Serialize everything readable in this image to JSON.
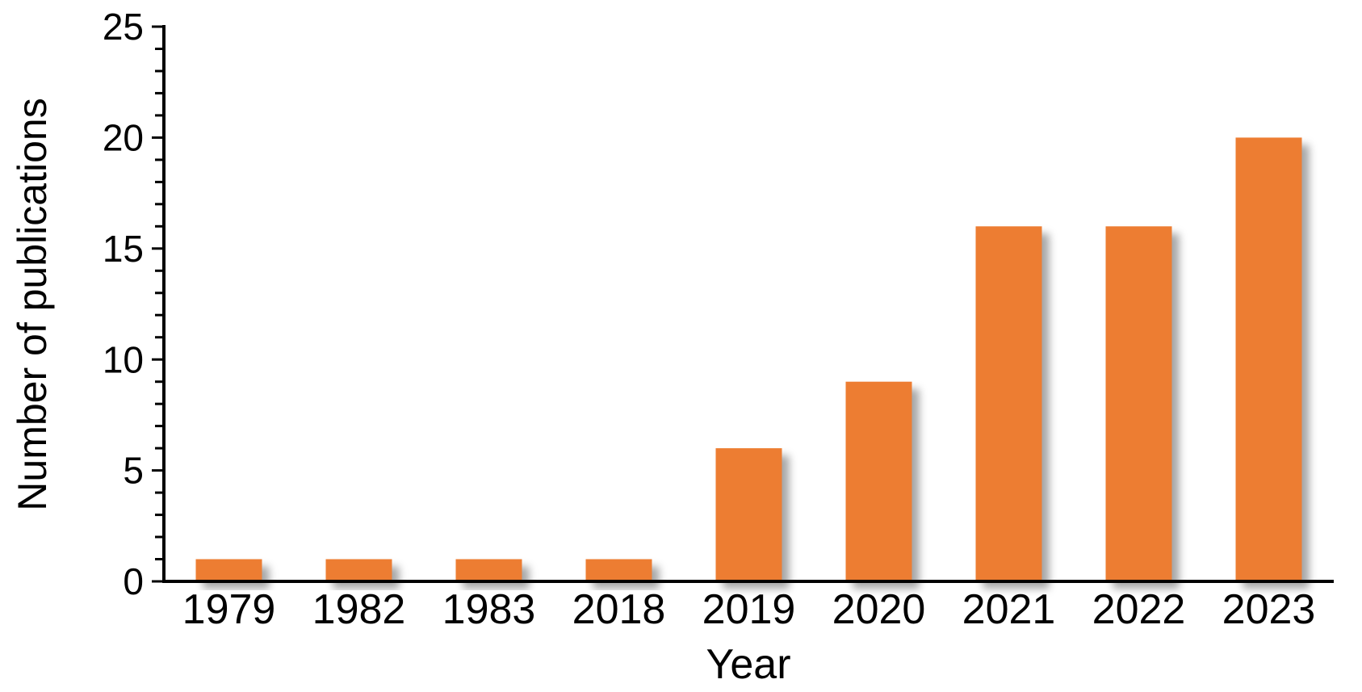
{
  "figure": {
    "background_color": "#ffffff"
  },
  "chart_data": {
    "type": "bar",
    "categories": [
      "1979",
      "1982",
      "1983",
      "2018",
      "2019",
      "2020",
      "2021",
      "2022",
      "2023"
    ],
    "values": [
      1,
      1,
      1,
      1,
      6,
      9,
      16,
      16,
      20
    ],
    "title": "",
    "xlabel": "Year",
    "ylabel": "Number of publications",
    "ylim": [
      0,
      25
    ],
    "yticks": [
      0,
      5,
      10,
      15,
      20,
      25
    ],
    "minor_tick_step": 1,
    "grid": false,
    "legend_position": "none",
    "bar_color": "#ED7D31",
    "axis_color": "#000000",
    "bar_shadow": true
  }
}
